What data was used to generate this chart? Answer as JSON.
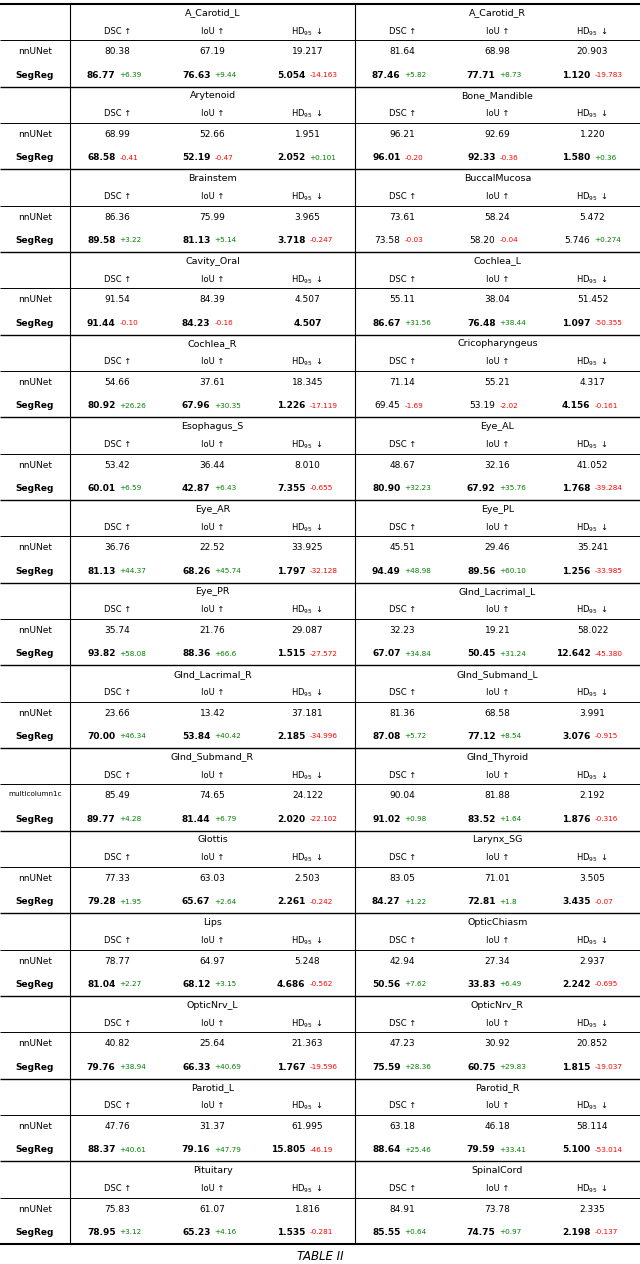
{
  "sections": [
    {
      "left_organ": "A_Carotid_L",
      "right_organ": "A_Carotid_R",
      "nn_L": [
        "80.38",
        "67.19",
        "19.217"
      ],
      "nn_R": [
        "81.64",
        "68.98",
        "20.903"
      ],
      "seg_L_base": [
        "86.77",
        "76.63",
        "5.054"
      ],
      "seg_R_base": [
        "87.46",
        "77.71",
        "1.120"
      ],
      "seg_L_delta": [
        "+6.39",
        "+9.44",
        "-14.163"
      ],
      "seg_R_delta": [
        "+5.82",
        "+8.73",
        "-19.783"
      ],
      "dcL": [
        "green",
        "green",
        "red"
      ],
      "dcR": [
        "green",
        "green",
        "red"
      ],
      "bL": [
        true,
        true,
        true
      ],
      "bR": [
        true,
        true,
        true
      ],
      "row_label": "nnUNet"
    },
    {
      "left_organ": "Arytenoid",
      "right_organ": "Bone_Mandible",
      "nn_L": [
        "68.99",
        "52.66",
        "1.951"
      ],
      "nn_R": [
        "96.21",
        "92.69",
        "1.220"
      ],
      "seg_L_base": [
        "68.58",
        "52.19",
        "2.052"
      ],
      "seg_R_base": [
        "96.01",
        "92.33",
        "1.580"
      ],
      "seg_L_delta": [
        "-0.41",
        "-0.47",
        "+0.101"
      ],
      "seg_R_delta": [
        "-0.20",
        "-0.36",
        "+0.36"
      ],
      "dcL": [
        "red",
        "red",
        "green"
      ],
      "dcR": [
        "red",
        "red",
        "green"
      ],
      "bL": [
        true,
        true,
        true
      ],
      "bR": [
        true,
        true,
        true
      ],
      "row_label": "nnUNet"
    },
    {
      "left_organ": "Brainstem",
      "right_organ": "BuccalMucosa",
      "nn_L": [
        "86.36",
        "75.99",
        "3.965"
      ],
      "nn_R": [
        "73.61",
        "58.24",
        "5.472"
      ],
      "seg_L_base": [
        "89.58",
        "81.13",
        "3.718"
      ],
      "seg_R_base": [
        "73.58",
        "58.20",
        "5.746"
      ],
      "seg_L_delta": [
        "+3.22",
        "+5.14",
        "-0.247"
      ],
      "seg_R_delta": [
        "-0.03",
        "-0.04",
        "+0.274"
      ],
      "dcL": [
        "green",
        "green",
        "red"
      ],
      "dcR": [
        "red",
        "red",
        "green"
      ],
      "bL": [
        true,
        true,
        true
      ],
      "bR": [
        false,
        false,
        false
      ],
      "row_label": "nnUNet"
    },
    {
      "left_organ": "Cavity_Oral",
      "right_organ": "Cochlea_L",
      "nn_L": [
        "91.54",
        "84.39",
        "4.507"
      ],
      "nn_R": [
        "55.11",
        "38.04",
        "51.452"
      ],
      "seg_L_base": [
        "91.44",
        "84.23",
        "4.507"
      ],
      "seg_R_base": [
        "86.67",
        "76.48",
        "1.097"
      ],
      "seg_L_delta": [
        "-0.10",
        "-0.16",
        ""
      ],
      "seg_R_delta": [
        "+31.56",
        "+38.44",
        "-50.355"
      ],
      "dcL": [
        "red",
        "red",
        "black"
      ],
      "dcR": [
        "green",
        "green",
        "red"
      ],
      "bL": [
        true,
        true,
        true
      ],
      "bR": [
        true,
        true,
        true
      ],
      "row_label": "nnUNet"
    },
    {
      "left_organ": "Cochlea_R",
      "right_organ": "Cricopharyngeus",
      "nn_L": [
        "54.66",
        "37.61",
        "18.345"
      ],
      "nn_R": [
        "71.14",
        "55.21",
        "4.317"
      ],
      "seg_L_base": [
        "80.92",
        "67.96",
        "1.226"
      ],
      "seg_R_base": [
        "69.45",
        "53.19",
        "4.156"
      ],
      "seg_L_delta": [
        "+26.26",
        "+30.35",
        "-17.119"
      ],
      "seg_R_delta": [
        "-1.69",
        "-2.02",
        "-0.161"
      ],
      "dcL": [
        "green",
        "green",
        "red"
      ],
      "dcR": [
        "red",
        "red",
        "red"
      ],
      "bL": [
        true,
        true,
        true
      ],
      "bR": [
        false,
        false,
        true
      ],
      "row_label": "nnUNet"
    },
    {
      "left_organ": "Esophagus_S",
      "right_organ": "Eye_AL",
      "nn_L": [
        "53.42",
        "36.44",
        "8.010"
      ],
      "nn_R": [
        "48.67",
        "32.16",
        "41.052"
      ],
      "seg_L_base": [
        "60.01",
        "42.87",
        "7.355"
      ],
      "seg_R_base": [
        "80.90",
        "67.92",
        "1.768"
      ],
      "seg_L_delta": [
        "+6.59",
        "+6.43",
        "-0.655"
      ],
      "seg_R_delta": [
        "+32.23",
        "+35.76",
        "-39.284"
      ],
      "dcL": [
        "green",
        "green",
        "red"
      ],
      "dcR": [
        "green",
        "green",
        "red"
      ],
      "bL": [
        true,
        true,
        true
      ],
      "bR": [
        true,
        true,
        true
      ],
      "row_label": "nnUNet"
    },
    {
      "left_organ": "Eye_AR",
      "right_organ": "Eye_PL",
      "nn_L": [
        "36.76",
        "22.52",
        "33.925"
      ],
      "nn_R": [
        "45.51",
        "29.46",
        "35.241"
      ],
      "seg_L_base": [
        "81.13",
        "68.26",
        "1.797"
      ],
      "seg_R_base": [
        "94.49",
        "89.56",
        "1.256"
      ],
      "seg_L_delta": [
        "+44.37",
        "+45.74",
        "-32.128"
      ],
      "seg_R_delta": [
        "+48.98",
        "+60.10",
        "-33.985"
      ],
      "dcL": [
        "green",
        "green",
        "red"
      ],
      "dcR": [
        "green",
        "green",
        "red"
      ],
      "bL": [
        true,
        true,
        true
      ],
      "bR": [
        true,
        true,
        true
      ],
      "row_label": "nnUNet"
    },
    {
      "left_organ": "Eye_PR",
      "right_organ": "Glnd_Lacrimal_L",
      "nn_L": [
        "35.74",
        "21.76",
        "29.087"
      ],
      "nn_R": [
        "32.23",
        "19.21",
        "58.022"
      ],
      "seg_L_base": [
        "93.82",
        "88.36",
        "1.515"
      ],
      "seg_R_base": [
        "67.07",
        "50.45",
        "12.642"
      ],
      "seg_L_delta": [
        "+58.08",
        "+66.6",
        "-27.572"
      ],
      "seg_R_delta": [
        "+34.84",
        "+31.24",
        "-45.380"
      ],
      "dcL": [
        "green",
        "green",
        "red"
      ],
      "dcR": [
        "green",
        "green",
        "red"
      ],
      "bL": [
        true,
        true,
        true
      ],
      "bR": [
        true,
        true,
        true
      ],
      "row_label": "nnUNet"
    },
    {
      "left_organ": "Glnd_Lacrimal_R",
      "right_organ": "Glnd_Submand_L",
      "nn_L": [
        "23.66",
        "13.42",
        "37.181"
      ],
      "nn_R": [
        "81.36",
        "68.58",
        "3.991"
      ],
      "seg_L_base": [
        "70.00",
        "53.84",
        "2.185"
      ],
      "seg_R_base": [
        "87.08",
        "77.12",
        "3.076"
      ],
      "seg_L_delta": [
        "+46.34",
        "+40.42",
        "-34.996"
      ],
      "seg_R_delta": [
        "+5.72",
        "+8.54",
        "-0.915"
      ],
      "dcL": [
        "green",
        "green",
        "red"
      ],
      "dcR": [
        "green",
        "green",
        "red"
      ],
      "bL": [
        true,
        true,
        true
      ],
      "bR": [
        true,
        true,
        true
      ],
      "row_label": "nnUNet"
    },
    {
      "left_organ": "Glnd_Submand_R",
      "right_organ": "Glnd_Thyroid",
      "nn_L": [
        "85.49",
        "74.65",
        "24.122"
      ],
      "nn_R": [
        "90.04",
        "81.88",
        "2.192"
      ],
      "seg_L_base": [
        "89.77",
        "81.44",
        "2.020"
      ],
      "seg_R_base": [
        "91.02",
        "83.52",
        "1.876"
      ],
      "seg_L_delta": [
        "+4.28",
        "+6.79",
        "-22.102"
      ],
      "seg_R_delta": [
        "+0.98",
        "+1.64",
        "-0.316"
      ],
      "dcL": [
        "green",
        "green",
        "red"
      ],
      "dcR": [
        "green",
        "green",
        "red"
      ],
      "bL": [
        true,
        true,
        true
      ],
      "bR": [
        true,
        true,
        true
      ],
      "row_label": "multicolumn1c"
    },
    {
      "left_organ": "Glottis",
      "right_organ": "Larynx_SG",
      "nn_L": [
        "77.33",
        "63.03",
        "2.503"
      ],
      "nn_R": [
        "83.05",
        "71.01",
        "3.505"
      ],
      "seg_L_base": [
        "79.28",
        "65.67",
        "2.261"
      ],
      "seg_R_base": [
        "84.27",
        "72.81",
        "3.435"
      ],
      "seg_L_delta": [
        "+1.95",
        "+2.64",
        "-0.242"
      ],
      "seg_R_delta": [
        "+1.22",
        "+1.8",
        "-0.07"
      ],
      "dcL": [
        "green",
        "green",
        "red"
      ],
      "dcR": [
        "green",
        "green",
        "red"
      ],
      "bL": [
        true,
        true,
        true
      ],
      "bR": [
        true,
        true,
        true
      ],
      "row_label": "nnUNet"
    },
    {
      "left_organ": "Lips",
      "right_organ": "OpticChiasm",
      "nn_L": [
        "78.77",
        "64.97",
        "5.248"
      ],
      "nn_R": [
        "42.94",
        "27.34",
        "2.937"
      ],
      "seg_L_base": [
        "81.04",
        "68.12",
        "4.686"
      ],
      "seg_R_base": [
        "50.56",
        "33.83",
        "2.242"
      ],
      "seg_L_delta": [
        "+2.27",
        "+3.15",
        "-0.562"
      ],
      "seg_R_delta": [
        "+7.62",
        "+6.49",
        "-0.695"
      ],
      "dcL": [
        "green",
        "green",
        "red"
      ],
      "dcR": [
        "green",
        "green",
        "red"
      ],
      "bL": [
        true,
        true,
        true
      ],
      "bR": [
        true,
        true,
        true
      ],
      "row_label": "nnUNet"
    },
    {
      "left_organ": "OpticNrv_L",
      "right_organ": "OpticNrv_R",
      "nn_L": [
        "40.82",
        "25.64",
        "21.363"
      ],
      "nn_R": [
        "47.23",
        "30.92",
        "20.852"
      ],
      "seg_L_base": [
        "79.76",
        "66.33",
        "1.767"
      ],
      "seg_R_base": [
        "75.59",
        "60.75",
        "1.815"
      ],
      "seg_L_delta": [
        "+38.94",
        "+40.69",
        "-19.596"
      ],
      "seg_R_delta": [
        "+28.36",
        "+29.83",
        "-19.037"
      ],
      "dcL": [
        "green",
        "green",
        "red"
      ],
      "dcR": [
        "green",
        "green",
        "red"
      ],
      "bL": [
        true,
        true,
        true
      ],
      "bR": [
        true,
        true,
        true
      ],
      "row_label": "nnUNet"
    },
    {
      "left_organ": "Parotid_L",
      "right_organ": "Parotid_R",
      "nn_L": [
        "47.76",
        "31.37",
        "61.995"
      ],
      "nn_R": [
        "63.18",
        "46.18",
        "58.114"
      ],
      "seg_L_base": [
        "88.37",
        "79.16",
        "15.805"
      ],
      "seg_R_base": [
        "88.64",
        "79.59",
        "5.100"
      ],
      "seg_L_delta": [
        "+40.61",
        "+47.79",
        "-46.19"
      ],
      "seg_R_delta": [
        "+25.46",
        "+33.41",
        "-53.014"
      ],
      "dcL": [
        "green",
        "green",
        "red"
      ],
      "dcR": [
        "green",
        "green",
        "red"
      ],
      "bL": [
        true,
        true,
        true
      ],
      "bR": [
        true,
        true,
        true
      ],
      "row_label": "nnUNet"
    },
    {
      "left_organ": "Pituitary",
      "right_organ": "SpinalCord",
      "nn_L": [
        "75.83",
        "61.07",
        "1.816"
      ],
      "nn_R": [
        "84.91",
        "73.78",
        "2.335"
      ],
      "seg_L_base": [
        "78.95",
        "65.23",
        "1.535"
      ],
      "seg_R_base": [
        "85.55",
        "74.75",
        "2.198"
      ],
      "seg_L_delta": [
        "+3.12",
        "+4.16",
        "-0.281"
      ],
      "seg_R_delta": [
        "+0.64",
        "+0.97",
        "-0.137"
      ],
      "dcL": [
        "green",
        "green",
        "red"
      ],
      "dcR": [
        "green",
        "green",
        "red"
      ],
      "bL": [
        true,
        true,
        true
      ],
      "bR": [
        true,
        true,
        true
      ],
      "row_label": "nnUNet"
    }
  ]
}
